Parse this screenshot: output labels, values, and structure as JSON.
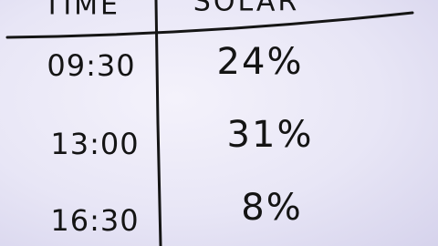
{
  "table": {
    "header": [
      "TIME",
      "SOLAR"
    ],
    "rows": [
      [
        "09:30",
        "24%"
      ],
      [
        "13:00",
        "31%"
      ],
      [
        "16:30",
        "8%"
      ]
    ]
  }
}
